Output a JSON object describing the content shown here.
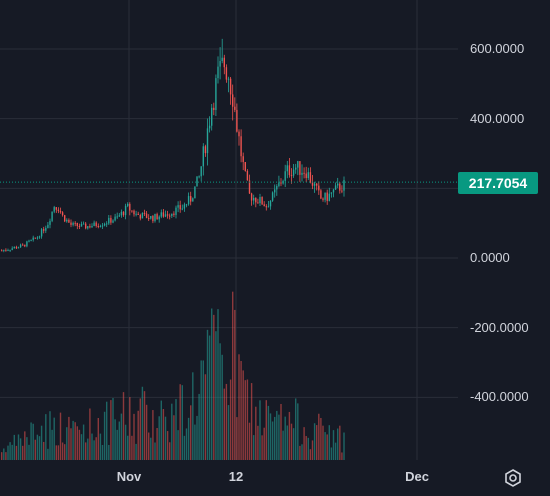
{
  "chart_data": {
    "type": "candlestick",
    "y_ticks": [
      "600.0000",
      "400.0000",
      "0.0000",
      "-200.0000",
      "-400.0000"
    ],
    "x_ticks": [
      "Nov",
      "12",
      "Dec"
    ],
    "ylim": [
      -580,
      660
    ],
    "last_price": "217.7054",
    "last_price_value": 217.7054,
    "colors": {
      "up": "#26a69a",
      "down": "#ef5350",
      "background": "#161a25",
      "grid": "#2a2e39",
      "badge": "#089981"
    },
    "ohlc_keypoints": [
      [
        0,
        22
      ],
      [
        10,
        35
      ],
      [
        17,
        60
      ],
      [
        22,
        100
      ],
      [
        25,
        150
      ],
      [
        27,
        145
      ],
      [
        29,
        120
      ],
      [
        33,
        95
      ],
      [
        40,
        90
      ],
      [
        48,
        100
      ],
      [
        55,
        115
      ],
      [
        60,
        145
      ],
      [
        64,
        125
      ],
      [
        72,
        115
      ],
      [
        80,
        130
      ],
      [
        86,
        145
      ],
      [
        90,
        170
      ],
      [
        94,
        230
      ],
      [
        97,
        330
      ],
      [
        100,
        440
      ],
      [
        103,
        520
      ],
      [
        106,
        560
      ],
      [
        108,
        530
      ],
      [
        110,
        470
      ],
      [
        112,
        380
      ],
      [
        114,
        300
      ],
      [
        116,
        230
      ],
      [
        118,
        180
      ],
      [
        121,
        170
      ],
      [
        124,
        160
      ],
      [
        126,
        150
      ],
      [
        129,
        175
      ],
      [
        132,
        210
      ],
      [
        136,
        250
      ],
      [
        140,
        260
      ],
      [
        145,
        250
      ],
      [
        149,
        205
      ],
      [
        152,
        170
      ],
      [
        155,
        175
      ],
      [
        160,
        200
      ],
      [
        163,
        210
      ]
    ],
    "volume_keypoints": [
      [
        0,
        0.05
      ],
      [
        10,
        0.15
      ],
      [
        20,
        0.25
      ],
      [
        22,
        0.3
      ],
      [
        30,
        0.2
      ],
      [
        40,
        0.25
      ],
      [
        50,
        0.3
      ],
      [
        60,
        0.35
      ],
      [
        70,
        0.4
      ],
      [
        80,
        0.35
      ],
      [
        90,
        0.5
      ],
      [
        100,
        0.8
      ],
      [
        106,
        1.0
      ],
      [
        110,
        0.9
      ],
      [
        114,
        0.6
      ],
      [
        120,
        0.4
      ],
      [
        130,
        0.3
      ],
      [
        140,
        0.3
      ],
      [
        150,
        0.25
      ],
      [
        163,
        0.15
      ]
    ]
  },
  "icons": {
    "settings": "settings-gear-icon"
  }
}
